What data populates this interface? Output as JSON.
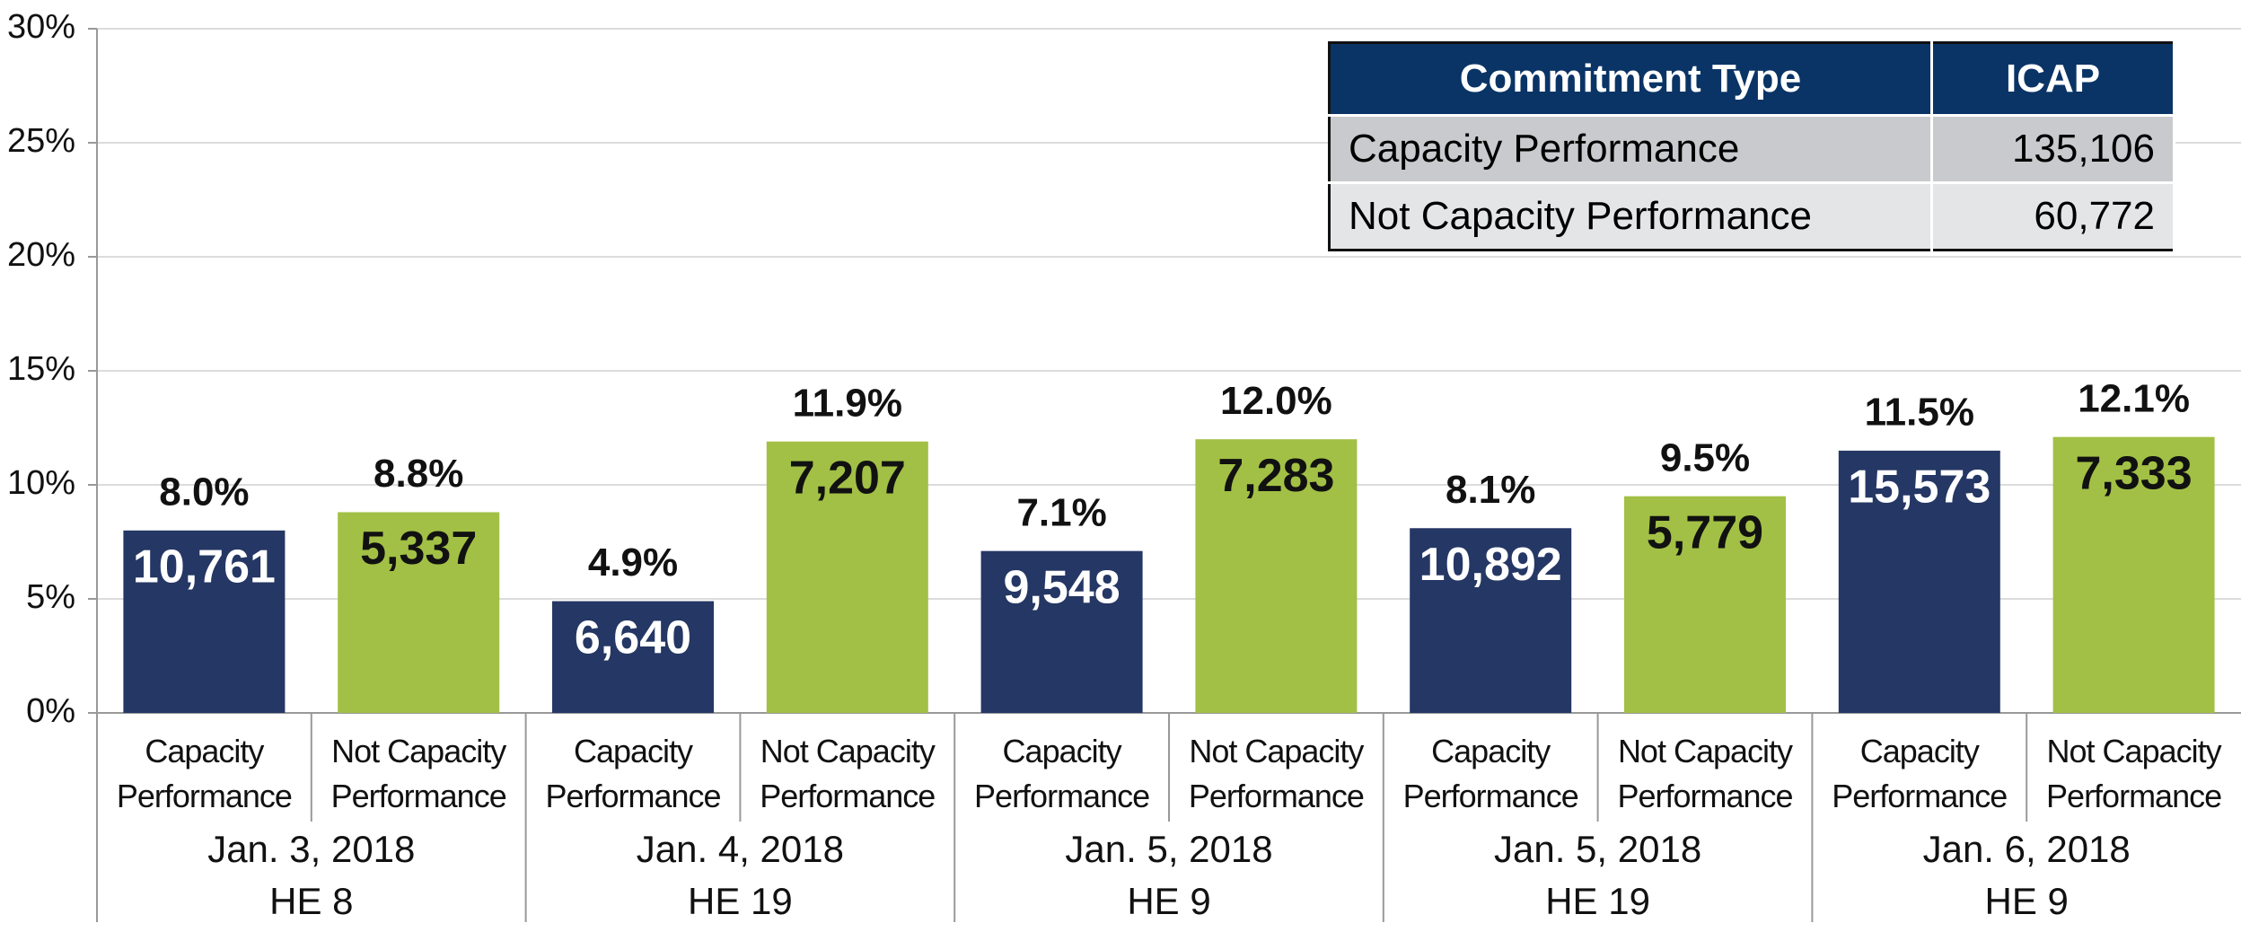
{
  "chart_data": {
    "type": "bar",
    "categories": [
      [
        "Jan. 3, 2018",
        "HE 8"
      ],
      [
        "Jan. 4, 2018",
        "HE 19"
      ],
      [
        "Jan. 5, 2018",
        "HE 9"
      ],
      [
        "Jan. 5, 2018",
        "HE 19"
      ],
      [
        "Jan. 6, 2018",
        "HE 9"
      ]
    ],
    "series": [
      {
        "name": "Capacity Performance",
        "color": "#253764",
        "label_color": "#ffffff",
        "values": [
          8.0,
          4.9,
          7.1,
          8.1,
          11.5
        ],
        "value_labels": [
          "8.0%",
          "4.9%",
          "7.1%",
          "8.1%",
          "11.5%"
        ],
        "counts": [
          {
            "value": 10761,
            "label": "10,761"
          },
          {
            "value": 6640,
            "label": "6,640"
          },
          {
            "value": 9548,
            "label": "9,548"
          },
          {
            "value": 10892,
            "label": "10,892"
          },
          {
            "value": 15573,
            "label": "15,573"
          }
        ]
      },
      {
        "name": "Not Capacity Performance",
        "color": "#a2c045",
        "label_color": "#111111",
        "values": [
          8.8,
          11.9,
          12.0,
          9.5,
          12.1
        ],
        "value_labels": [
          "8.8%",
          "11.9%",
          "12.0%",
          "9.5%",
          "12.1%"
        ],
        "counts": [
          {
            "value": 5337,
            "label": "5,337"
          },
          {
            "value": 7207,
            "label": "7,207"
          },
          {
            "value": 7283,
            "label": "7,283"
          },
          {
            "value": 5779,
            "label": "5,779"
          },
          {
            "value": 7333,
            "label": "7,333"
          }
        ]
      }
    ],
    "ylim": [
      0,
      30
    ],
    "yticks": [
      {
        "value": 0,
        "label": "0%"
      },
      {
        "value": 5,
        "label": "5%"
      },
      {
        "value": 10,
        "label": "10%"
      },
      {
        "value": 15,
        "label": "15%"
      },
      {
        "value": 20,
        "label": "20%"
      },
      {
        "value": 25,
        "label": "25%"
      },
      {
        "value": 30,
        "label": "30%"
      }
    ],
    "grid": true
  },
  "table": {
    "header": [
      "Commitment Type",
      "ICAP"
    ],
    "rows": [
      [
        "Capacity Performance",
        "135,106"
      ],
      [
        "Not Capacity Performance",
        "60,772"
      ]
    ]
  }
}
